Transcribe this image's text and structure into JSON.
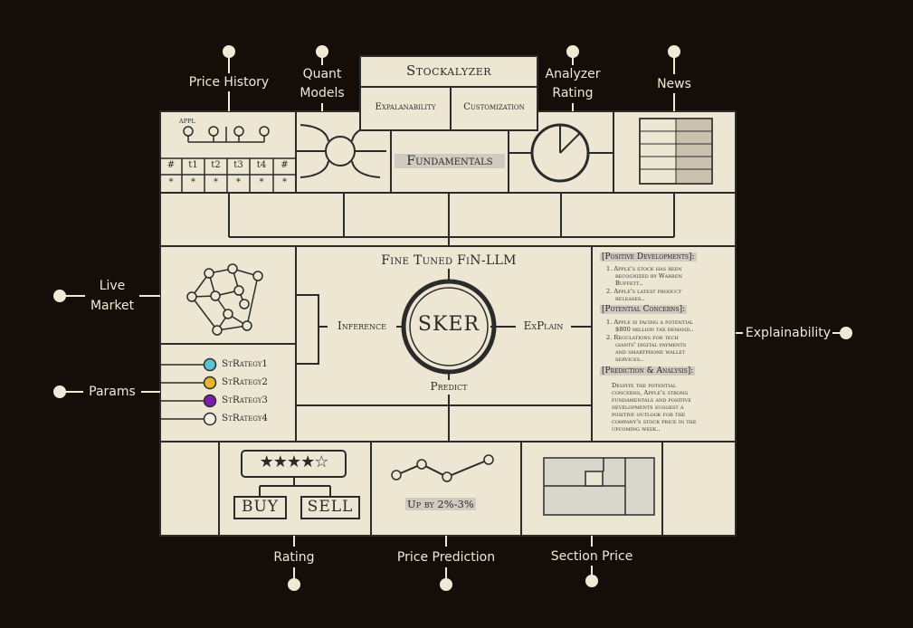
{
  "top_labels": {
    "price_history": "Price History",
    "quant_models_l1": "Quant",
    "quant_models_l2": "Models",
    "analyzer_rating_l1": "Analyzer",
    "analyzer_rating_l2": "Rating",
    "news": "News"
  },
  "side_labels": {
    "live_market_l1": "Live",
    "live_market_l2": "Market",
    "params": "Params",
    "explainability": "Explainability"
  },
  "bottom_labels": {
    "rating": "Rating",
    "price_prediction": "Price Prediction",
    "section_price": "Section Price"
  },
  "header": {
    "title": "Stockalyzer",
    "tab_left": "Expalanability",
    "tab_right": "Customization"
  },
  "price_history": {
    "ticker": "APPL",
    "row1": [
      "#",
      "t1",
      "t2",
      "t3",
      "t4",
      "#"
    ],
    "row2": [
      "*",
      "*",
      "*",
      "*",
      "*",
      "*"
    ]
  },
  "fundamentals": "Fundamentals",
  "core": {
    "title": "Fine Tuned FiN-LLM",
    "center": "SKER",
    "inference": "Inference",
    "explain": "ExPlain",
    "predict": "Predict"
  },
  "strategies": [
    "StRategy1",
    "StRategy2",
    "StRategy3",
    "StRategy4"
  ],
  "strategy_colors": [
    "#5bc4d4",
    "#e8b62a",
    "#7a1fa8",
    "#f2eee0"
  ],
  "rating": {
    "stars": "★★★★☆",
    "buy": "BUY",
    "sell": "SELL",
    "filled_stars": 4,
    "total_stars": 5
  },
  "prediction": {
    "text": "Up by 2%-3%"
  },
  "explain_doc": {
    "h1": "[Positive Developments]:",
    "p1": [
      "1. Apple's stock has been",
      "recognized by Warren",
      "Buffett..",
      "2. Apple's latest product",
      "releases.."
    ],
    "h2": "[Potential Concerns]:",
    "p2": [
      "1. Apple is facing a potential",
      "$800 million tax demand..",
      "2. Regulations for tech",
      "giants' digital payments",
      "and smartphone wallet",
      "services.."
    ],
    "h3": "[Prediction & Analysis]:",
    "p3": [
      "Despite the potential",
      "concerns, Apple's strong",
      "fundamentals and positive",
      "developments suggest a",
      "positive outlook for the",
      "company's stock price in the",
      "upcoming week.."
    ]
  }
}
